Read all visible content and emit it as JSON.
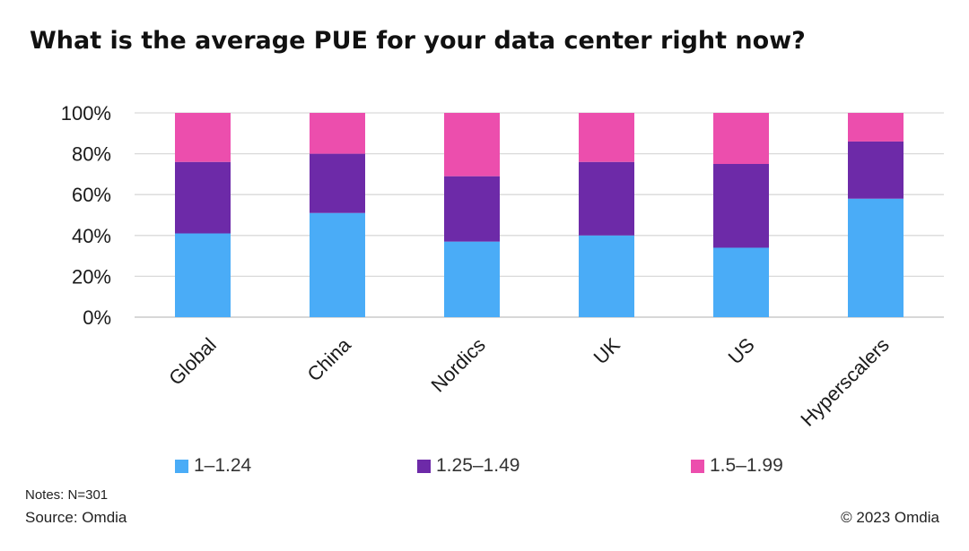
{
  "title": "What is the average PUE for your data center right now?",
  "notes": "Notes: N=301",
  "source": "Source: Omdia",
  "copyright": "© 2023 Omdia",
  "chart_data": {
    "type": "bar",
    "stacked": true,
    "title": "What is the average PUE for your data center right now?",
    "xlabel": "",
    "ylabel": "",
    "ylim": [
      0,
      100
    ],
    "yticks": [
      "0%",
      "20%",
      "40%",
      "60%",
      "80%",
      "100%"
    ],
    "grid": true,
    "legend_position": "bottom",
    "categories": [
      "Global",
      "China",
      "Nordics",
      "UK",
      "US",
      "Hyperscalers"
    ],
    "series": [
      {
        "name": "1–1.24",
        "color": "#4aacf7",
        "values": [
          41,
          51,
          37,
          40,
          34,
          58
        ]
      },
      {
        "name": "1.25–1.49",
        "color": "#6d2aa8",
        "values": [
          35,
          29,
          32,
          36,
          41,
          28
        ]
      },
      {
        "name": "1.5–1.99",
        "color": "#ec4ead",
        "values": [
          24,
          20,
          31,
          24,
          25,
          14
        ]
      }
    ]
  }
}
